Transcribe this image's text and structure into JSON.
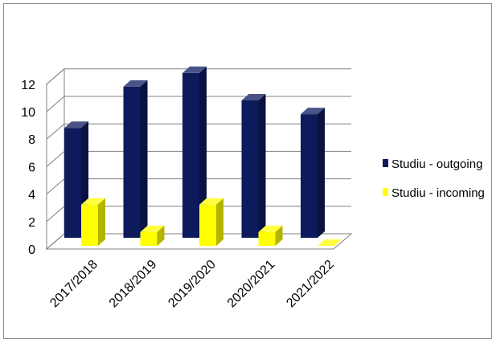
{
  "chart_data": {
    "type": "bar",
    "style": "3d-clustered-column",
    "categories": [
      "2017/2018",
      "2018/2019",
      "2019/2020",
      "2020/2021",
      "2021/2022"
    ],
    "series": [
      {
        "name": "Studiu - outgoing",
        "values": [
          8,
          11,
          12,
          10,
          9
        ],
        "color": "#0d1a5c"
      },
      {
        "name": "Studiu - incoming",
        "values": [
          3,
          1,
          3,
          1,
          0
        ],
        "color": "#ffff00"
      }
    ],
    "ylim": [
      0,
      12
    ],
    "yticks": [
      0,
      2,
      4,
      6,
      8,
      10,
      12
    ],
    "grid": true,
    "legend": "right"
  }
}
